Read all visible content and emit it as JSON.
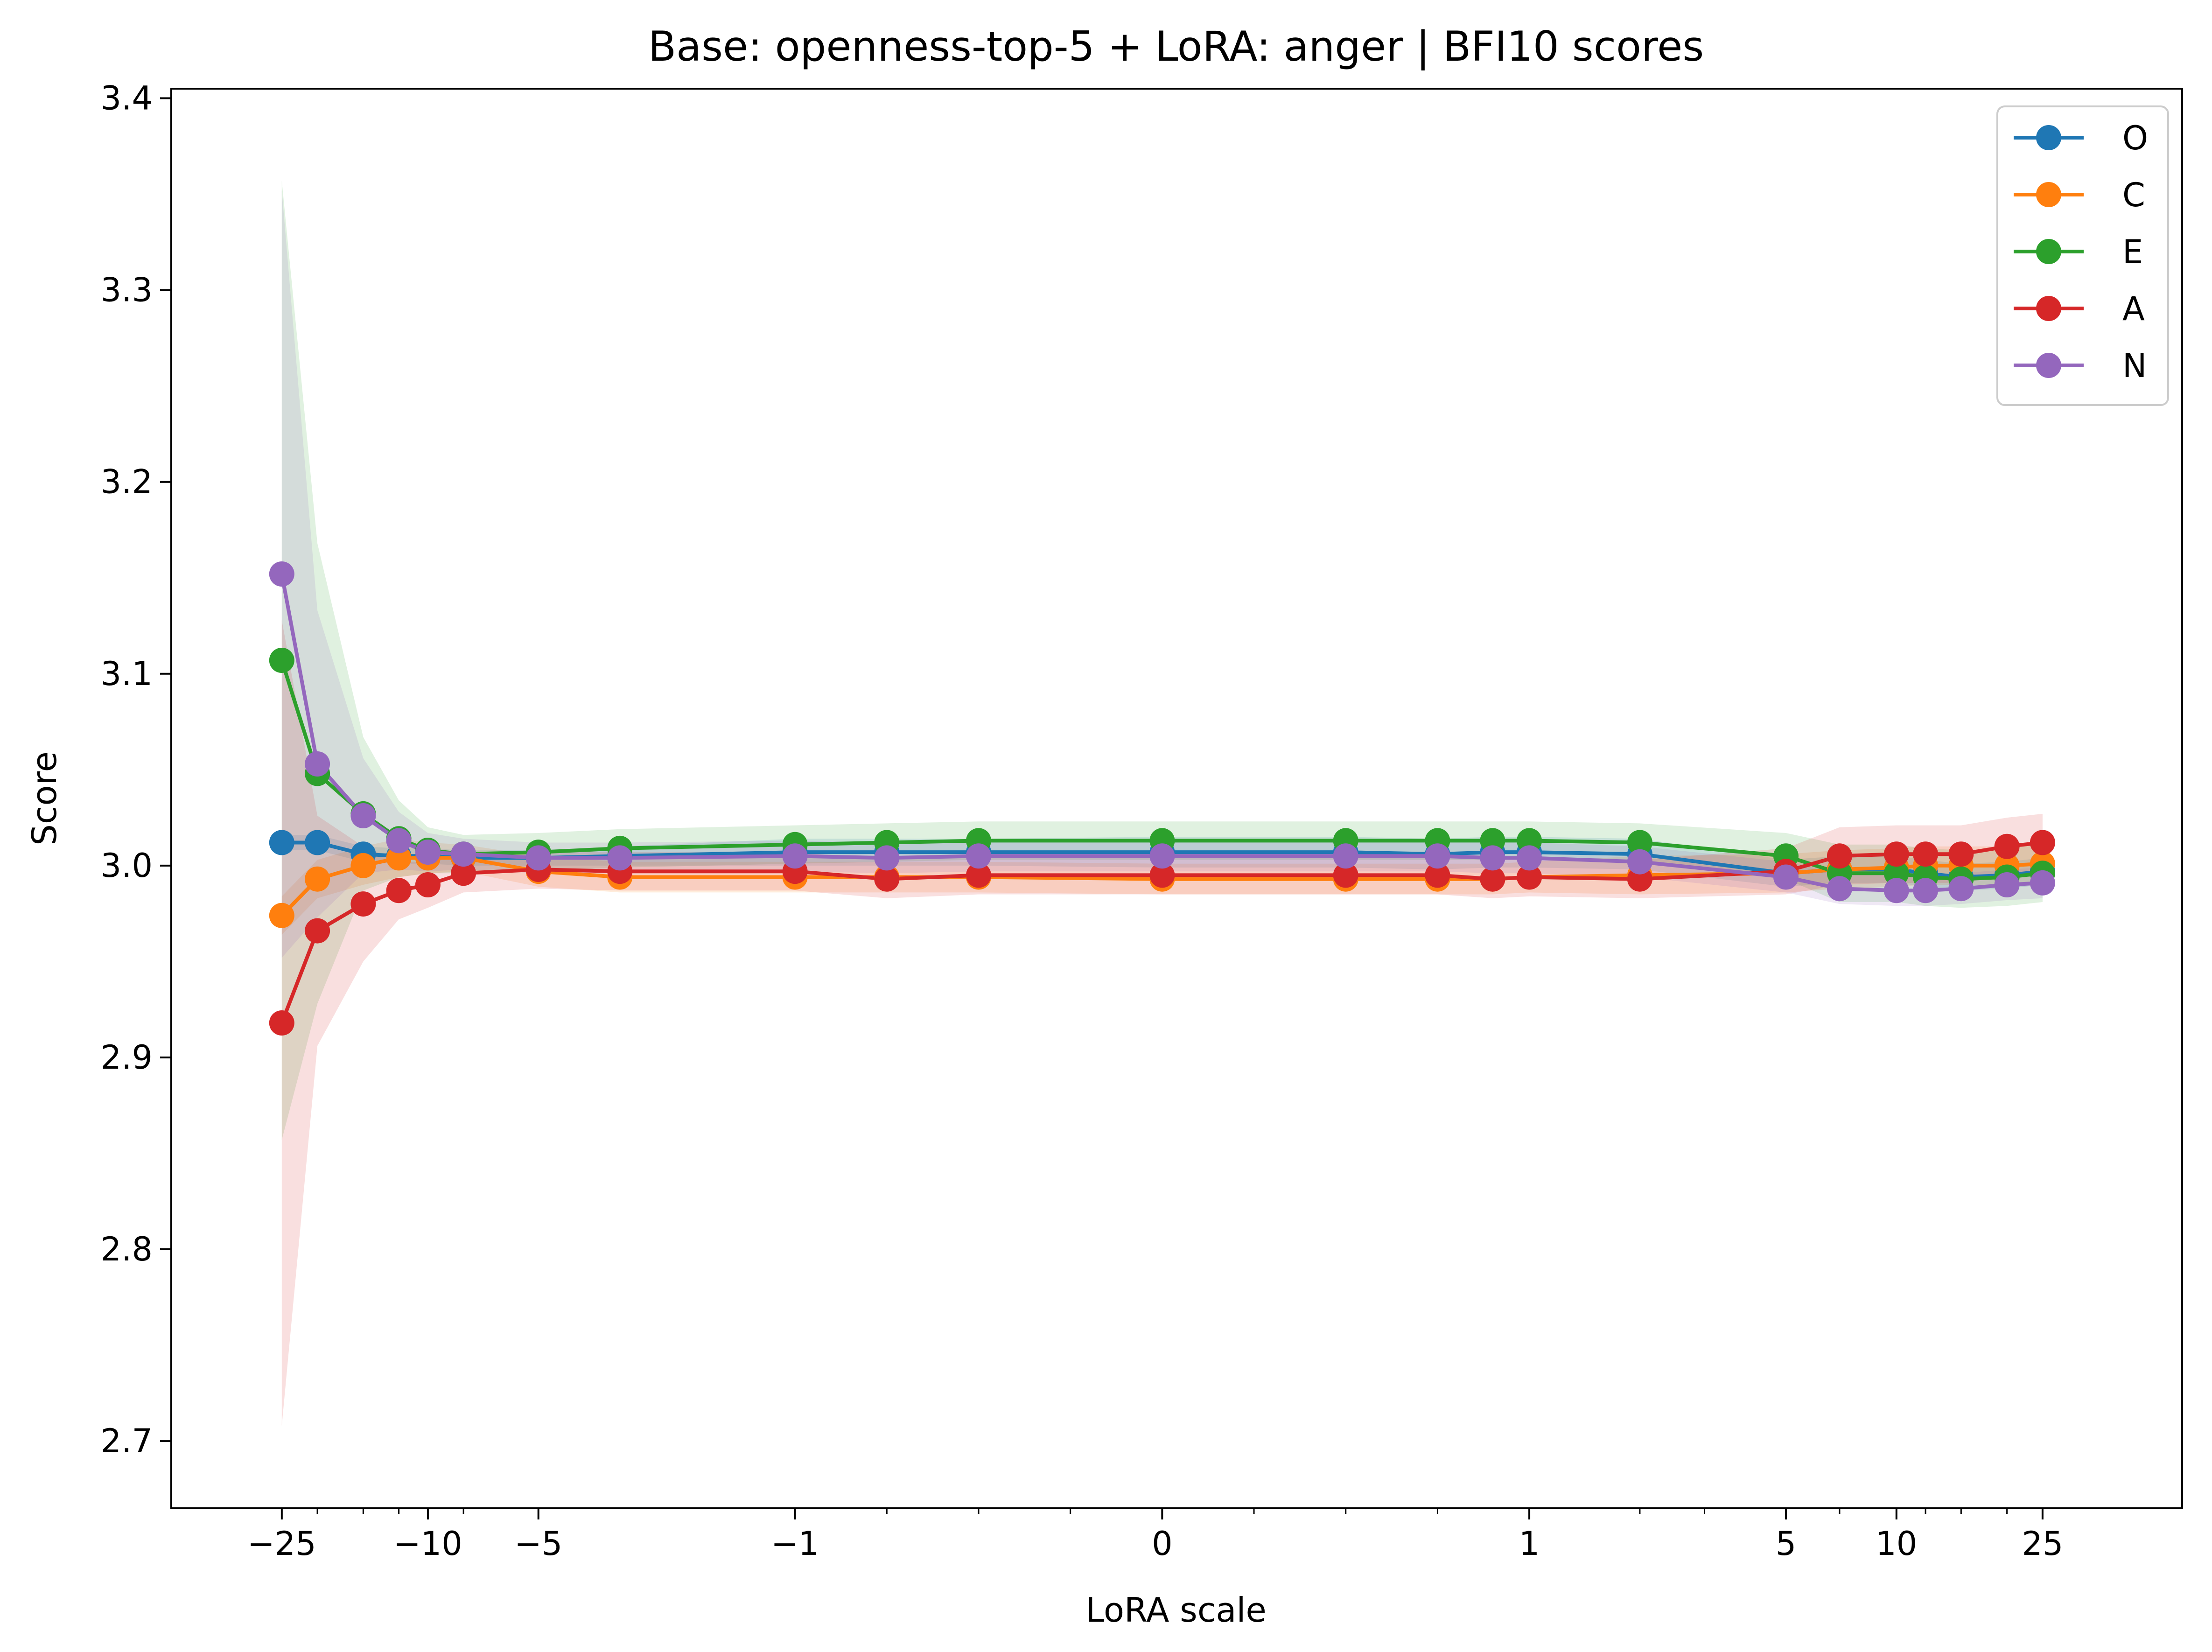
{
  "chart_data": {
    "type": "line",
    "title": "Base: openness-top-5 + LoRA: anger | BFI10 scores",
    "xlabel": "LoRA scale",
    "ylabel": "Score",
    "xscale": "symlog",
    "xlim": [
      -50,
      60
    ],
    "ylim": [
      2.665,
      3.405
    ],
    "xticks": [
      -25,
      -10,
      -5,
      -1,
      0,
      1,
      5,
      10,
      25
    ],
    "xtick_labels": [
      "−25",
      "−10",
      "−5",
      "−1",
      "0",
      "1",
      "5",
      "10",
      "25"
    ],
    "yticks": [
      2.7,
      2.8,
      2.9,
      3.0,
      3.1,
      3.2,
      3.3,
      3.4
    ],
    "ytick_labels": [
      "2.7",
      "2.8",
      "2.9",
      "3.0",
      "3.1",
      "3.2",
      "3.3",
      "3.4"
    ],
    "legend_position": "top-right",
    "grid": false,
    "x": [
      -25,
      -20,
      -15,
      -12,
      -10,
      -8,
      -5,
      -3,
      -1,
      -0.75,
      -0.5,
      0,
      0.5,
      0.75,
      0.9,
      1,
      2,
      5,
      7,
      10,
      12,
      15,
      20,
      25
    ],
    "series": [
      {
        "name": "O",
        "color": "#1f77b4",
        "values": [
          3.012,
          3.012,
          3.006,
          3.005,
          3.005,
          3.004,
          3.004,
          3.005,
          3.007,
          3.007,
          3.007,
          3.007,
          3.007,
          3.006,
          3.007,
          3.007,
          3.006,
          2.996,
          2.998,
          2.998,
          2.996,
          2.994,
          2.995,
          2.997
        ],
        "band": [
          0.004,
          0.004,
          0.004,
          0.004,
          0.004,
          0.004,
          0.004,
          0.005,
          0.007,
          0.007,
          0.007,
          0.008,
          0.008,
          0.008,
          0.008,
          0.008,
          0.008,
          0.007,
          0.007,
          0.007,
          0.007,
          0.007,
          0.007,
          0.007
        ]
      },
      {
        "name": "C",
        "color": "#ff7f0e",
        "values": [
          2.974,
          2.993,
          3.0,
          3.004,
          3.004,
          3.004,
          2.997,
          2.994,
          2.994,
          2.994,
          2.994,
          2.993,
          2.993,
          2.993,
          2.993,
          2.994,
          2.995,
          2.996,
          2.998,
          2.999,
          3.0,
          3.0,
          3.0,
          3.001
        ],
        "band": [
          0.01,
          0.01,
          0.01,
          0.01,
          0.008,
          0.007,
          0.008,
          0.008,
          0.008,
          0.008,
          0.008,
          0.008,
          0.008,
          0.008,
          0.008,
          0.008,
          0.01,
          0.01,
          0.01,
          0.01,
          0.01,
          0.01,
          0.01,
          0.01
        ]
      },
      {
        "name": "E",
        "color": "#2ca02c",
        "values": [
          3.107,
          3.048,
          3.027,
          3.014,
          3.008,
          3.006,
          3.007,
          3.009,
          3.011,
          3.012,
          3.013,
          3.013,
          3.013,
          3.013,
          3.013,
          3.013,
          3.012,
          3.005,
          2.996,
          2.996,
          2.994,
          2.993,
          2.994,
          2.996
        ],
        "band": [
          0.25,
          0.12,
          0.04,
          0.02,
          0.012,
          0.01,
          0.01,
          0.01,
          0.01,
          0.01,
          0.01,
          0.01,
          0.01,
          0.01,
          0.01,
          0.01,
          0.01,
          0.012,
          0.015,
          0.015,
          0.015,
          0.015,
          0.015,
          0.015
        ]
      },
      {
        "name": "A",
        "color": "#d62728",
        "values": [
          2.918,
          2.966,
          2.98,
          2.987,
          2.99,
          2.996,
          2.998,
          2.997,
          2.997,
          2.993,
          2.995,
          2.995,
          2.995,
          2.995,
          2.993,
          2.994,
          2.993,
          2.997,
          3.005,
          3.006,
          3.006,
          3.006,
          3.01,
          3.012
        ],
        "band": [
          0.21,
          0.06,
          0.03,
          0.015,
          0.012,
          0.01,
          0.01,
          0.01,
          0.01,
          0.01,
          0.01,
          0.01,
          0.01,
          0.01,
          0.01,
          0.01,
          0.01,
          0.012,
          0.015,
          0.015,
          0.015,
          0.015,
          0.015,
          0.015
        ]
      },
      {
        "name": "N",
        "color": "#9467bd",
        "values": [
          3.152,
          3.053,
          3.026,
          3.013,
          3.007,
          3.006,
          3.004,
          3.004,
          3.005,
          3.004,
          3.005,
          3.005,
          3.005,
          3.005,
          3.004,
          3.004,
          3.002,
          2.994,
          2.988,
          2.987,
          2.987,
          2.988,
          2.99,
          2.991
        ],
        "band": [
          0.2,
          0.08,
          0.03,
          0.015,
          0.01,
          0.008,
          0.008,
          0.008,
          0.008,
          0.008,
          0.008,
          0.008,
          0.008,
          0.008,
          0.008,
          0.008,
          0.008,
          0.008,
          0.008,
          0.008,
          0.008,
          0.008,
          0.008,
          0.008
        ]
      }
    ]
  }
}
